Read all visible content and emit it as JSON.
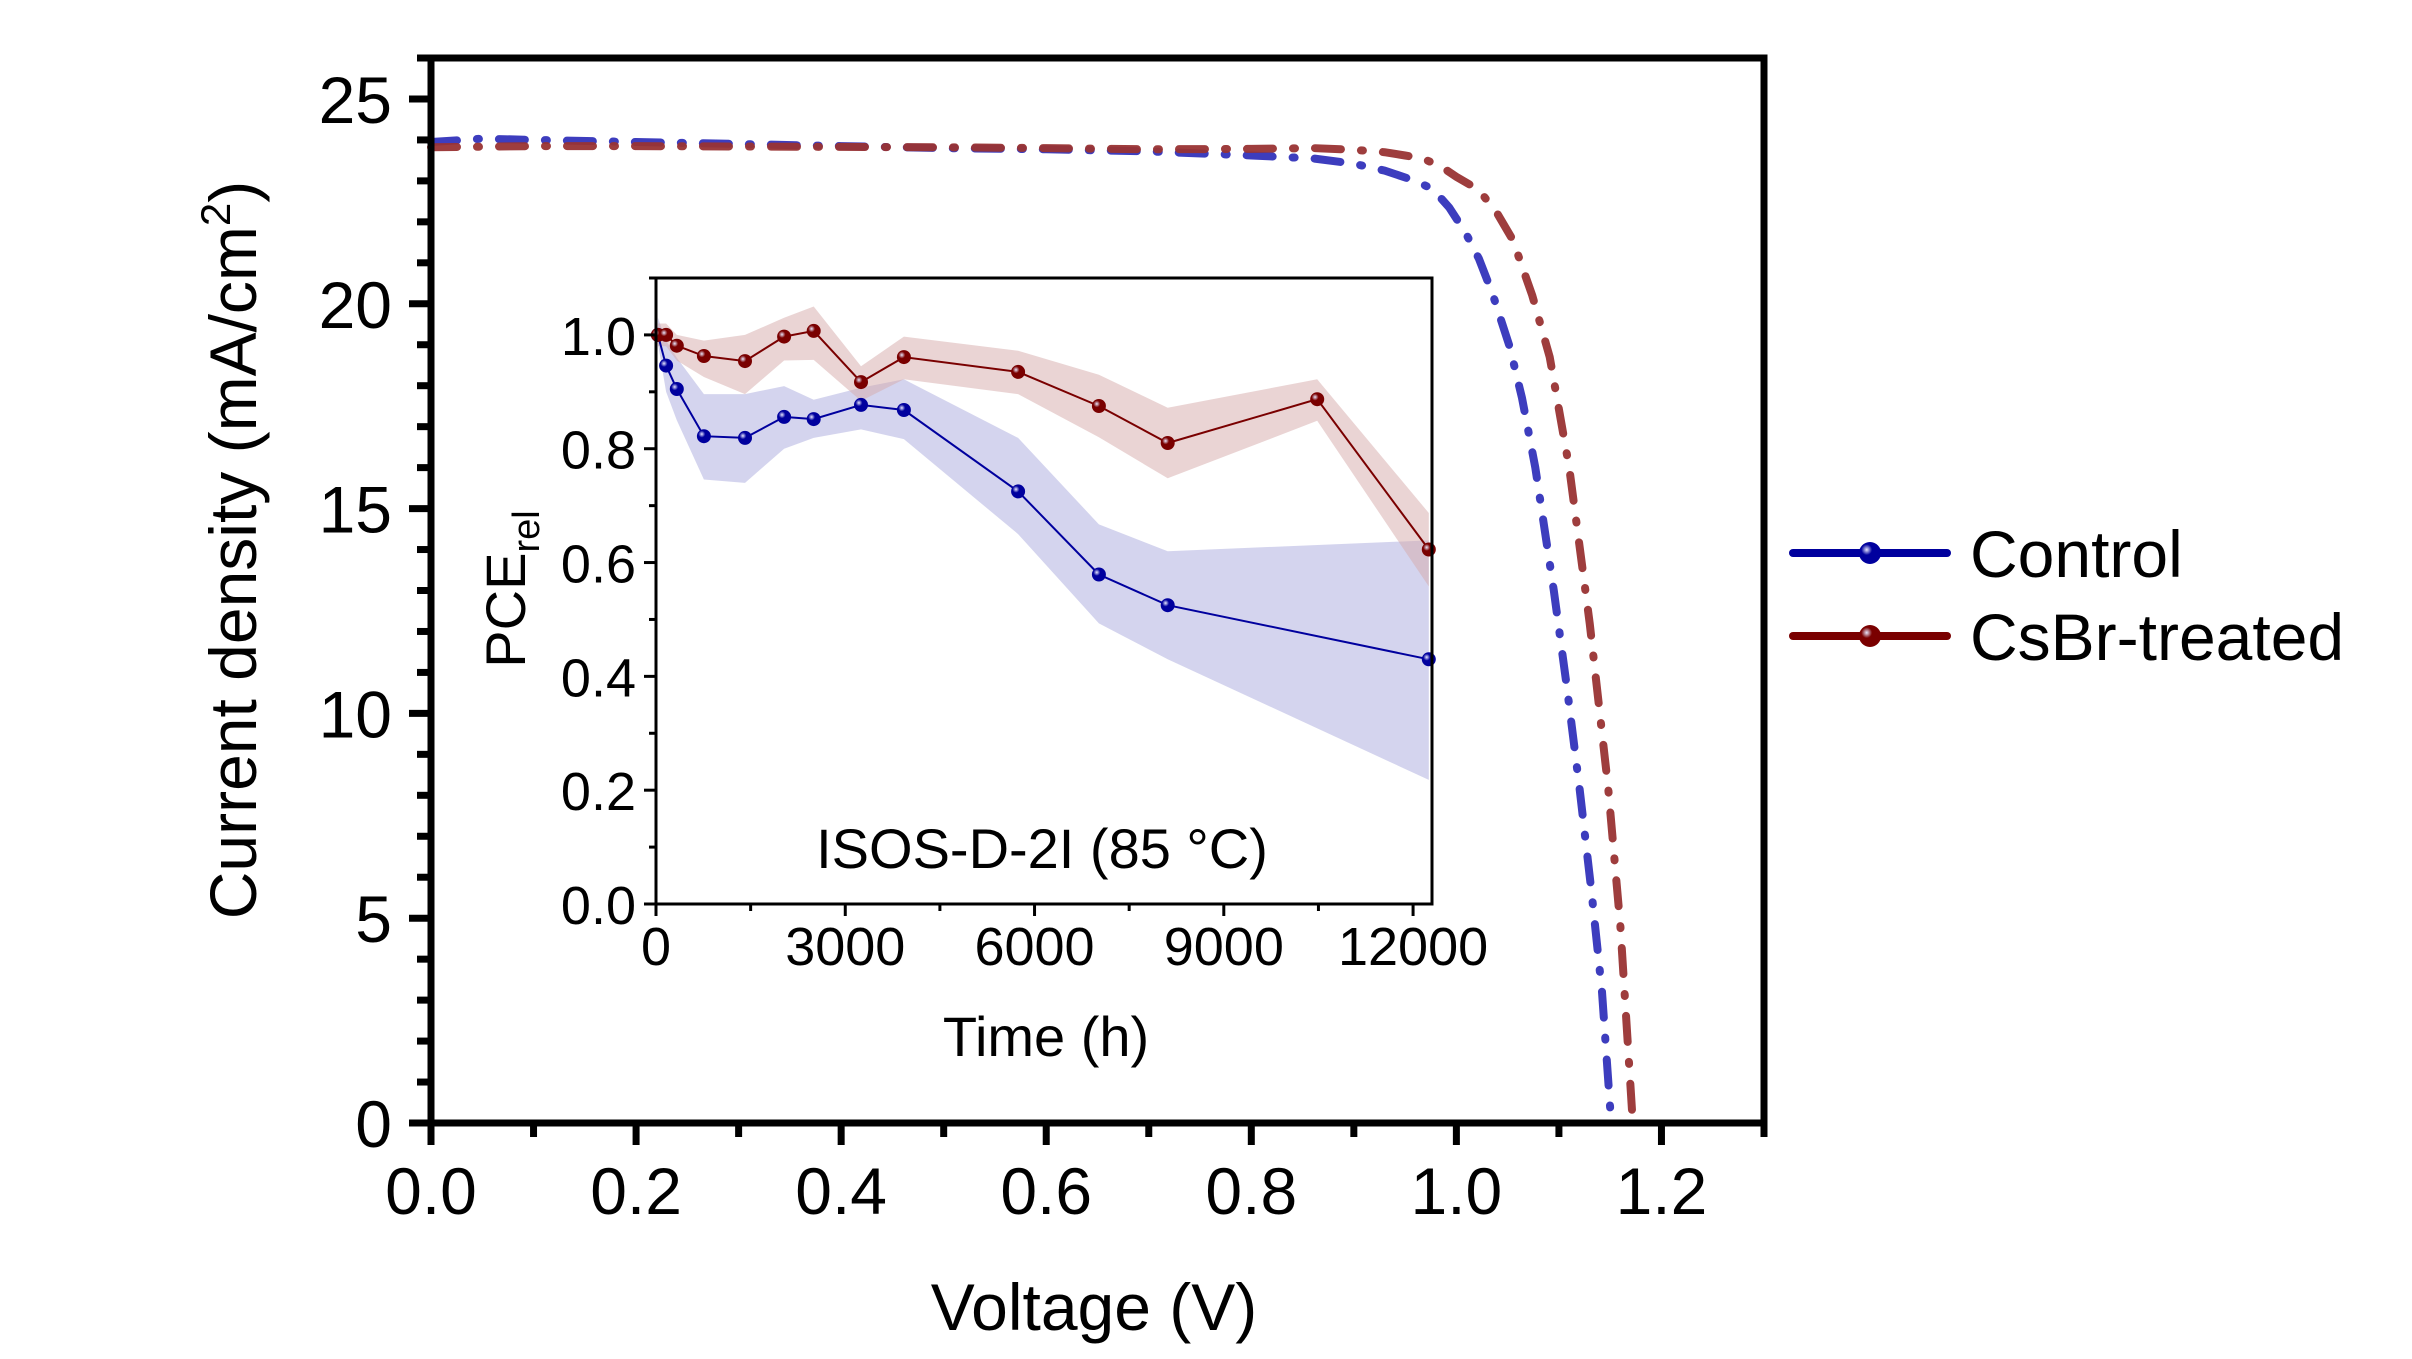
{
  "chart_data": [
    {
      "id": "main",
      "type": "line",
      "title": "",
      "xlabel": "Voltage (V)",
      "ylabel_main": "Current density (mA/cm",
      "ylabel_sup": "2",
      "ylabel_close": ")",
      "xlim": [
        0,
        1.3
      ],
      "ylim": [
        0,
        26
      ],
      "xticks": [
        0.0,
        0.2,
        0.4,
        0.6,
        0.8,
        1.0,
        1.2
      ],
      "xtick_labels": [
        "0.0",
        "0.2",
        "0.4",
        "0.6",
        "0.8",
        "1.0",
        "1.2"
      ],
      "x_minor_step": 0.1,
      "yticks": [
        0,
        5,
        10,
        15,
        20,
        25
      ],
      "ytick_labels": [
        "0",
        "5",
        "10",
        "15",
        "20",
        "25"
      ],
      "y_minor_step": 1,
      "grid": false,
      "line_style": "dash-dot",
      "legend": {
        "placement": "right-outside",
        "entries": [
          {
            "label": "Control",
            "color": "#00009e"
          },
          {
            "label": "CsBr-treated",
            "color": "#7a0000"
          }
        ]
      },
      "series": [
        {
          "name": "Control",
          "color": "#3333bb",
          "x": [
            0.0,
            0.05,
            0.1,
            0.2,
            0.3,
            0.4,
            0.5,
            0.6,
            0.7,
            0.8,
            0.86,
            0.9,
            0.93,
            0.96,
            0.977,
            0.993,
            1.009,
            1.022,
            1.035,
            1.052,
            1.064,
            1.077,
            1.095,
            1.108,
            1.12,
            1.132,
            1.142,
            1.151
          ],
          "y": [
            23.95,
            24.03,
            24.0,
            23.95,
            23.9,
            23.85,
            23.8,
            23.77,
            23.72,
            23.62,
            23.55,
            23.42,
            23.25,
            23.0,
            22.8,
            22.35,
            21.73,
            21.1,
            20.26,
            18.95,
            17.7,
            16.0,
            13.0,
            10.6,
            8.2,
            5.6,
            3.2,
            0.0
          ]
        },
        {
          "name": "CsBr-treated",
          "color": "#993333",
          "x": [
            0.0,
            0.1,
            0.2,
            0.3,
            0.4,
            0.5,
            0.6,
            0.7,
            0.8,
            0.86,
            0.9,
            0.93,
            0.95,
            0.967,
            0.985,
            1.0,
            1.022,
            1.04,
            1.055,
            1.074,
            1.091,
            1.11,
            1.13,
            1.148,
            1.16,
            1.172
          ],
          "y": [
            23.82,
            23.85,
            23.85,
            23.84,
            23.83,
            23.82,
            23.8,
            23.77,
            23.78,
            23.8,
            23.76,
            23.7,
            23.62,
            23.55,
            23.35,
            23.1,
            22.78,
            22.2,
            21.56,
            20.2,
            18.7,
            16.0,
            12.2,
            8.2,
            4.8,
            0.0
          ]
        }
      ]
    },
    {
      "id": "inset",
      "type": "line",
      "title": "",
      "annotation": "ISOS-D-2I (85 °C)",
      "xlabel": "Time (h)",
      "ylabel_main": "PCE",
      "ylabel_sub": "rel",
      "xlim": [
        0,
        12300
      ],
      "ylim": [
        0,
        1.1
      ],
      "xticks": [
        0,
        3000,
        6000,
        9000,
        12000
      ],
      "xtick_labels": [
        "0",
        "3000",
        "6000",
        "9000",
        "12000"
      ],
      "x_minor_step": 1500,
      "yticks": [
        0.0,
        0.2,
        0.4,
        0.6,
        0.8,
        1.0
      ],
      "ytick_labels": [
        "0.0",
        "0.2",
        "0.4",
        "0.6",
        "0.8",
        "1.0"
      ],
      "y_minor_step": 0.1,
      "grid": false,
      "series": [
        {
          "name": "Control",
          "color": "#00009e",
          "band_color": "#aaaadd",
          "x": [
            30,
            160,
            330,
            760,
            1410,
            2030,
            2500,
            3250,
            3930,
            5740,
            7020,
            8110,
            12250
          ],
          "y": [
            1.0,
            0.946,
            0.905,
            0.822,
            0.819,
            0.856,
            0.852,
            0.877,
            0.868,
            0.725,
            0.579,
            0.525,
            0.43
          ],
          "band_upper": [
            1.03,
            0.99,
            0.96,
            0.896,
            0.896,
            0.91,
            0.886,
            0.907,
            0.922,
            0.819,
            0.667,
            0.62,
            0.639
          ],
          "band_lower": [
            0.985,
            0.9,
            0.85,
            0.746,
            0.74,
            0.8,
            0.819,
            0.834,
            0.817,
            0.65,
            0.493,
            0.43,
            0.218
          ]
        },
        {
          "name": "CsBr-treated",
          "color": "#7a0000",
          "band_color": "#d6a9a9",
          "x": [
            30,
            160,
            330,
            760,
            1410,
            2030,
            2500,
            3250,
            3930,
            5740,
            7020,
            8110,
            10480,
            12250
          ],
          "y": [
            1.0,
            1.0,
            0.981,
            0.963,
            0.954,
            0.997,
            1.007,
            0.917,
            0.961,
            0.935,
            0.875,
            0.81,
            0.887,
            0.623
          ],
          "band_upper": [
            1.02,
            1.02,
            1.0,
            0.99,
            1.0,
            1.03,
            1.05,
            0.945,
            0.997,
            0.972,
            0.93,
            0.872,
            0.922,
            0.687
          ],
          "band_lower": [
            0.98,
            0.98,
            0.955,
            0.926,
            0.896,
            0.955,
            0.956,
            0.884,
            0.922,
            0.896,
            0.82,
            0.748,
            0.849,
            0.558
          ]
        }
      ]
    }
  ]
}
